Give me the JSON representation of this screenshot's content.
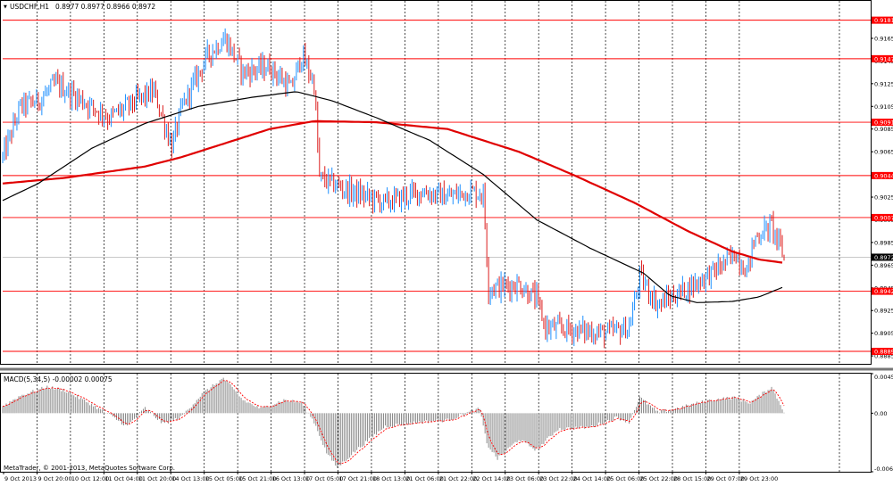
{
  "header": {
    "symbol_label": "USDCHF,H1",
    "ohlc_label": "0.8977 0.8977 0.8966 0.8972"
  },
  "footer": {
    "copyright": "MetaTrader, © 2001-2013, MetaQuotes Software Corp."
  },
  "colors": {
    "background": "#ffffff",
    "bull": "#1e90ff",
    "bear": "#dc1e1e",
    "ma_red": "#e00000",
    "ma_black": "#000000",
    "level": "#ff0000",
    "grid": "#000000",
    "macd_hist": "#808080",
    "macd_signal": "#ff0000"
  },
  "chart_data": [
    {
      "type": "candlestick",
      "title": "USDCHF,H1",
      "grid": true,
      "ylim": [
        0.8878,
        0.9198
      ],
      "y_ticks": [
        "0.9165",
        "0.9145",
        "0.9125",
        "0.9105",
        "0.9085",
        "0.9065",
        "0.9045",
        "0.9025",
        "0.9005",
        "0.8985",
        "0.8965",
        "0.8945",
        "0.8925",
        "0.8905",
        "0.8885"
      ],
      "level_labels": [
        "0.9181",
        "0.9147",
        "0.9091",
        "0.9044",
        "0.9007",
        "0.8942",
        "0.8889"
      ],
      "current_price": "0.8972",
      "x_tick_labels": [
        "9 Oct 2013",
        "9 Oct 20:00",
        "10 Oct 12:00",
        "11 Oct 04:00",
        "11 Oct 20:00",
        "14 Oct 13:00",
        "15 Oct 05:00",
        "15 Oct 21:00",
        "16 Oct 13:00",
        "17 Oct 05:00",
        "17 Oct 21:00",
        "18 Oct 13:00",
        "21 Oct 06:00",
        "21 Oct 22:00",
        "22 Oct 14:00",
        "23 Oct 06:00",
        "23 Oct 22:00",
        "24 Oct 14:00",
        "25 Oct 06:00",
        "25 Oct 22:00",
        "28 Oct 15:00",
        "29 Oct 07:00",
        "29 Oct 23:00"
      ],
      "close_path": [
        {
          "t": 0,
          "c": 0.906
        },
        {
          "t": 10,
          "c": 0.9105
        },
        {
          "t": 20,
          "c": 0.911
        },
        {
          "t": 30,
          "c": 0.9125
        },
        {
          "t": 45,
          "c": 0.911
        },
        {
          "t": 60,
          "c": 0.9095
        },
        {
          "t": 75,
          "c": 0.911
        },
        {
          "t": 85,
          "c": 0.9118
        },
        {
          "t": 95,
          "c": 0.907
        },
        {
          "t": 101,
          "c": 0.9105
        },
        {
          "t": 115,
          "c": 0.915
        },
        {
          "t": 125,
          "c": 0.9165
        },
        {
          "t": 135,
          "c": 0.9135
        },
        {
          "t": 150,
          "c": 0.914
        },
        {
          "t": 162,
          "c": 0.912
        },
        {
          "t": 168,
          "c": 0.915
        },
        {
          "t": 175,
          "c": 0.9125
        },
        {
          "t": 178,
          "c": 0.9042
        },
        {
          "t": 195,
          "c": 0.903
        },
        {
          "t": 215,
          "c": 0.902
        },
        {
          "t": 235,
          "c": 0.903
        },
        {
          "t": 250,
          "c": 0.9025
        },
        {
          "t": 262,
          "c": 0.903
        },
        {
          "t": 270,
          "c": 0.9028
        },
        {
          "t": 273,
          "c": 0.8945
        },
        {
          "t": 290,
          "c": 0.8948
        },
        {
          "t": 300,
          "c": 0.8935
        },
        {
          "t": 305,
          "c": 0.891
        },
        {
          "t": 320,
          "c": 0.8908
        },
        {
          "t": 340,
          "c": 0.8905
        },
        {
          "t": 352,
          "c": 0.891
        },
        {
          "t": 358,
          "c": 0.8955
        },
        {
          "t": 368,
          "c": 0.893
        },
        {
          "t": 385,
          "c": 0.8945
        },
        {
          "t": 400,
          "c": 0.896
        },
        {
          "t": 412,
          "c": 0.8975
        },
        {
          "t": 418,
          "c": 0.896
        },
        {
          "t": 423,
          "c": 0.899
        },
        {
          "t": 432,
          "c": 0.9
        },
        {
          "t": 439,
          "c": 0.8972
        }
      ],
      "ma_red": [
        {
          "t": 0,
          "v": 0.9037
        },
        {
          "t": 35,
          "v": 0.9042
        },
        {
          "t": 80,
          "v": 0.9052
        },
        {
          "t": 100,
          "v": 0.906
        },
        {
          "t": 130,
          "v": 0.9075
        },
        {
          "t": 150,
          "v": 0.9085
        },
        {
          "t": 175,
          "v": 0.9092
        },
        {
          "t": 210,
          "v": 0.9091
        },
        {
          "t": 250,
          "v": 0.9085
        },
        {
          "t": 290,
          "v": 0.9065
        },
        {
          "t": 320,
          "v": 0.9045
        },
        {
          "t": 355,
          "v": 0.902
        },
        {
          "t": 385,
          "v": 0.8995
        },
        {
          "t": 410,
          "v": 0.8977
        },
        {
          "t": 425,
          "v": 0.897
        },
        {
          "t": 439,
          "v": 0.8967
        }
      ],
      "ma_black": [
        {
          "t": 0,
          "v": 0.9022
        },
        {
          "t": 20,
          "v": 0.9037
        },
        {
          "t": 50,
          "v": 0.9068
        },
        {
          "t": 80,
          "v": 0.909
        },
        {
          "t": 110,
          "v": 0.9105
        },
        {
          "t": 140,
          "v": 0.9113
        },
        {
          "t": 165,
          "v": 0.9118
        },
        {
          "t": 185,
          "v": 0.911
        },
        {
          "t": 210,
          "v": 0.9095
        },
        {
          "t": 240,
          "v": 0.9075
        },
        {
          "t": 270,
          "v": 0.9045
        },
        {
          "t": 300,
          "v": 0.9005
        },
        {
          "t": 330,
          "v": 0.898
        },
        {
          "t": 360,
          "v": 0.8958
        },
        {
          "t": 375,
          "v": 0.8938
        },
        {
          "t": 390,
          "v": 0.8932
        },
        {
          "t": 410,
          "v": 0.8933
        },
        {
          "t": 425,
          "v": 0.8937
        },
        {
          "t": 439,
          "v": 0.8946
        }
      ]
    },
    {
      "type": "bar",
      "title": "MACD(5,34,5) -0.00002 0.00075",
      "ylim": [
        -0.00668,
        0.00451
      ],
      "y_ticks": [
        "0.00451",
        "0.00",
        "-0.00668"
      ],
      "histogram_path": [
        {
          "t": 0,
          "v": 0.0008
        },
        {
          "t": 10,
          "v": 0.002
        },
        {
          "t": 25,
          "v": 0.003
        },
        {
          "t": 35,
          "v": 0.0026
        },
        {
          "t": 50,
          "v": 0.001
        },
        {
          "t": 60,
          "v": -0.0002
        },
        {
          "t": 70,
          "v": -0.0015
        },
        {
          "t": 80,
          "v": 0.0006
        },
        {
          "t": 90,
          "v": -0.0012
        },
        {
          "t": 100,
          "v": -0.0005
        },
        {
          "t": 112,
          "v": 0.0022
        },
        {
          "t": 124,
          "v": 0.004
        },
        {
          "t": 135,
          "v": 0.0015
        },
        {
          "t": 145,
          "v": 0.0005
        },
        {
          "t": 158,
          "v": 0.0015
        },
        {
          "t": 168,
          "v": 0.0012
        },
        {
          "t": 175,
          "v": -0.001
        },
        {
          "t": 182,
          "v": -0.0045
        },
        {
          "t": 188,
          "v": -0.0062
        },
        {
          "t": 200,
          "v": -0.004
        },
        {
          "t": 215,
          "v": -0.0015
        },
        {
          "t": 235,
          "v": -0.001
        },
        {
          "t": 250,
          "v": -0.0008
        },
        {
          "t": 262,
          "v": 0.0001
        },
        {
          "t": 268,
          "v": 0.0005
        },
        {
          "t": 272,
          "v": -0.0035
        },
        {
          "t": 278,
          "v": -0.0052
        },
        {
          "t": 290,
          "v": -0.003
        },
        {
          "t": 300,
          "v": -0.0042
        },
        {
          "t": 312,
          "v": -0.0018
        },
        {
          "t": 330,
          "v": -0.0016
        },
        {
          "t": 345,
          "v": -0.0005
        },
        {
          "t": 352,
          "v": -0.001
        },
        {
          "t": 358,
          "v": 0.0018
        },
        {
          "t": 368,
          "v": 0.0001
        },
        {
          "t": 380,
          "v": 0.0006
        },
        {
          "t": 395,
          "v": 0.0014
        },
        {
          "t": 410,
          "v": 0.0018
        },
        {
          "t": 420,
          "v": 0.0012
        },
        {
          "t": 432,
          "v": 0.003
        },
        {
          "t": 439,
          "v": 0.0002
        }
      ]
    }
  ]
}
